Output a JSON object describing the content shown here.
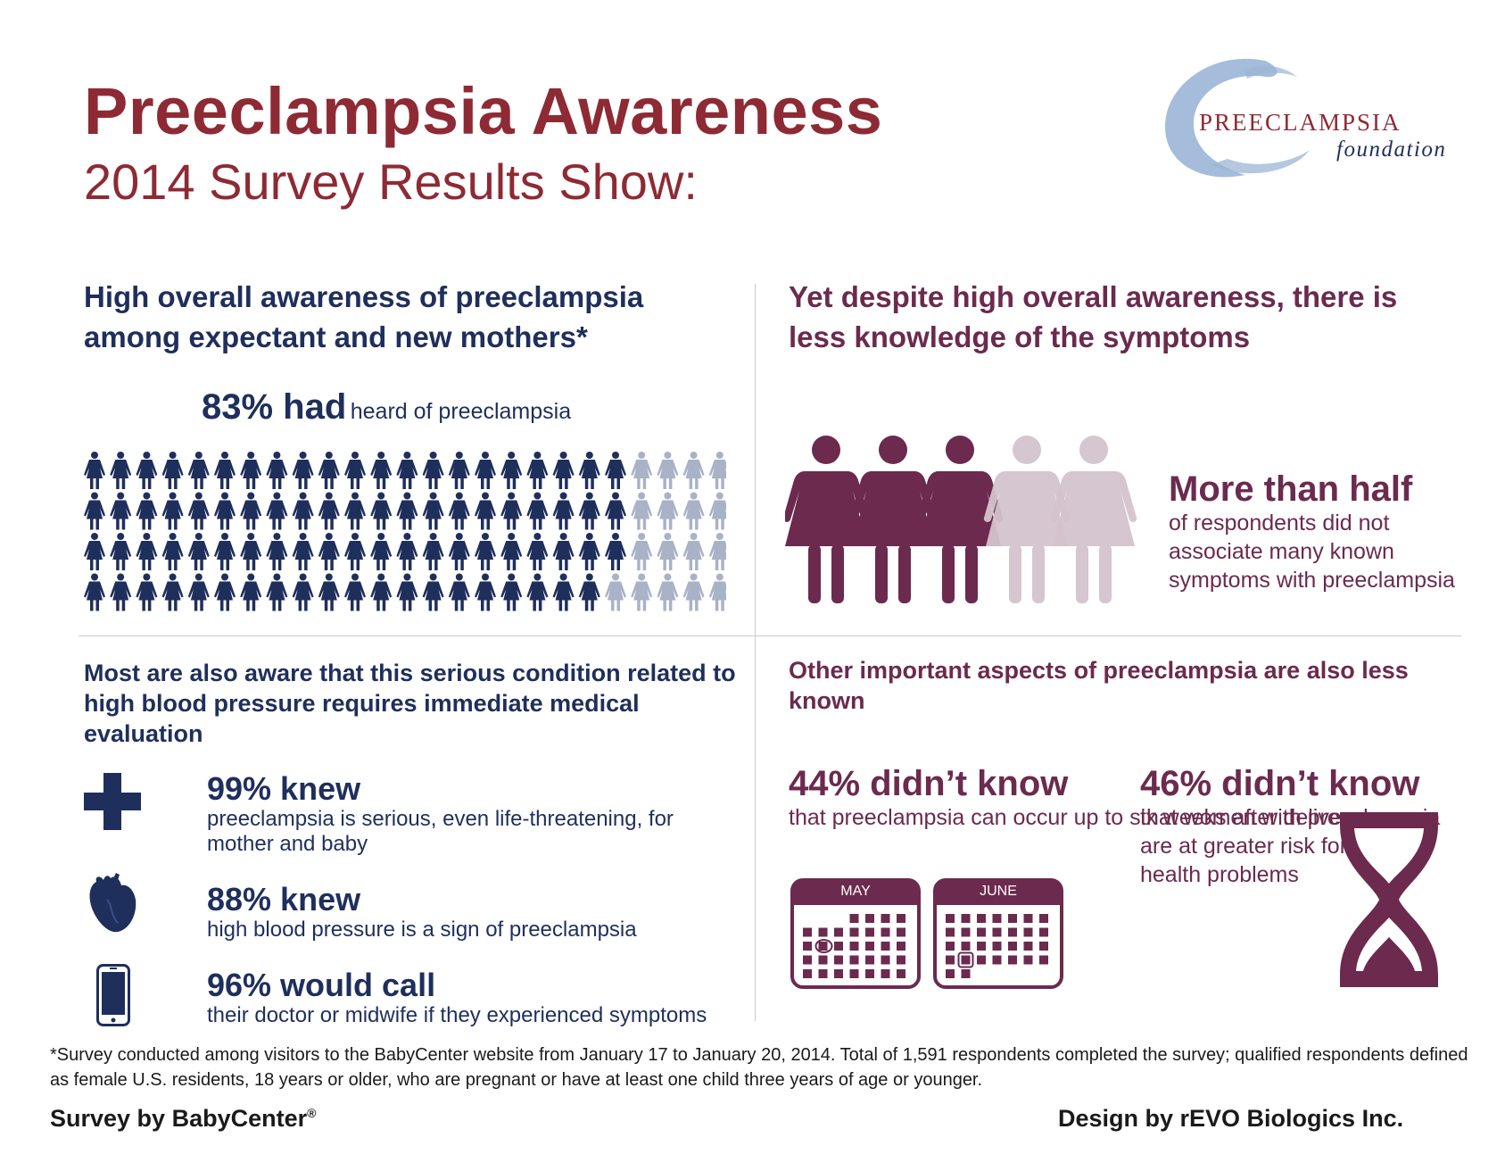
{
  "header": {
    "title": "Preeclampsia Awareness",
    "subtitle": "2014 Survey Results Show:"
  },
  "logo": {
    "line1": "PREECLAMPSIA",
    "line2": "foundation",
    "swirl_color": "#9bb5d6"
  },
  "colors": {
    "navy": "#1f2f5c",
    "plum": "#6b2a4e",
    "title_red": "#8e2a34",
    "light_navy": "#a9b2c6",
    "light_plum": "#d4c3cd"
  },
  "awareness": {
    "heading": "High overall awareness of preeclampsia among expectant and new mothers*",
    "stat_big": "83% had",
    "stat_small": "heard of preeclampsia",
    "percent_heard": 83,
    "grid_rows": 4,
    "grid_cols": 25
  },
  "symptoms": {
    "heading": "Yet despite high overall awareness, there is less knowledge of the symptoms",
    "big": "More than half",
    "small": "of respondents did not associate many known symptoms with preeclampsia",
    "women_total": 5,
    "women_highlighted": 3
  },
  "medical": {
    "heading": "Most are also aware that this serious condition related to high blood pressure requires immediate medical evaluation",
    "stats": [
      {
        "big": "99% knew",
        "small": "preeclampsia is serious, even life-threatening, for mother and baby",
        "icon": "medical-cross-icon"
      },
      {
        "big": "88% knew",
        "small": "high blood pressure is a sign of preeclampsia",
        "icon": "heart-icon"
      },
      {
        "big": "96% would call",
        "small": "their doctor or midwife if they experienced symptoms",
        "icon": "phone-icon"
      }
    ]
  },
  "other": {
    "heading": "Other important aspects of preeclampsia are also less known",
    "stat1": {
      "big": "44% didn’t know",
      "small": "that preeclampsia can occur up to six weeks after delivery"
    },
    "stat2": {
      "big": "46% didn’t know",
      "small": "that women with preeclampsia are at greater risk for future health problems"
    },
    "calendar_months": [
      "MAY",
      "JUNE"
    ]
  },
  "footer": {
    "footnote": "*Survey conducted among visitors to the BabyCenter website from January 17 to January 20, 2014. Total of 1,591 respondents completed the survey; qualified respondents defined as female U.S. residents, 18 years or older, who are pregnant or have at least one child three years of age or younger.",
    "credit_left": "Survey by BabyCenter",
    "credit_left_mark": "®",
    "credit_right": "Design by rEVO Biologics Inc."
  }
}
